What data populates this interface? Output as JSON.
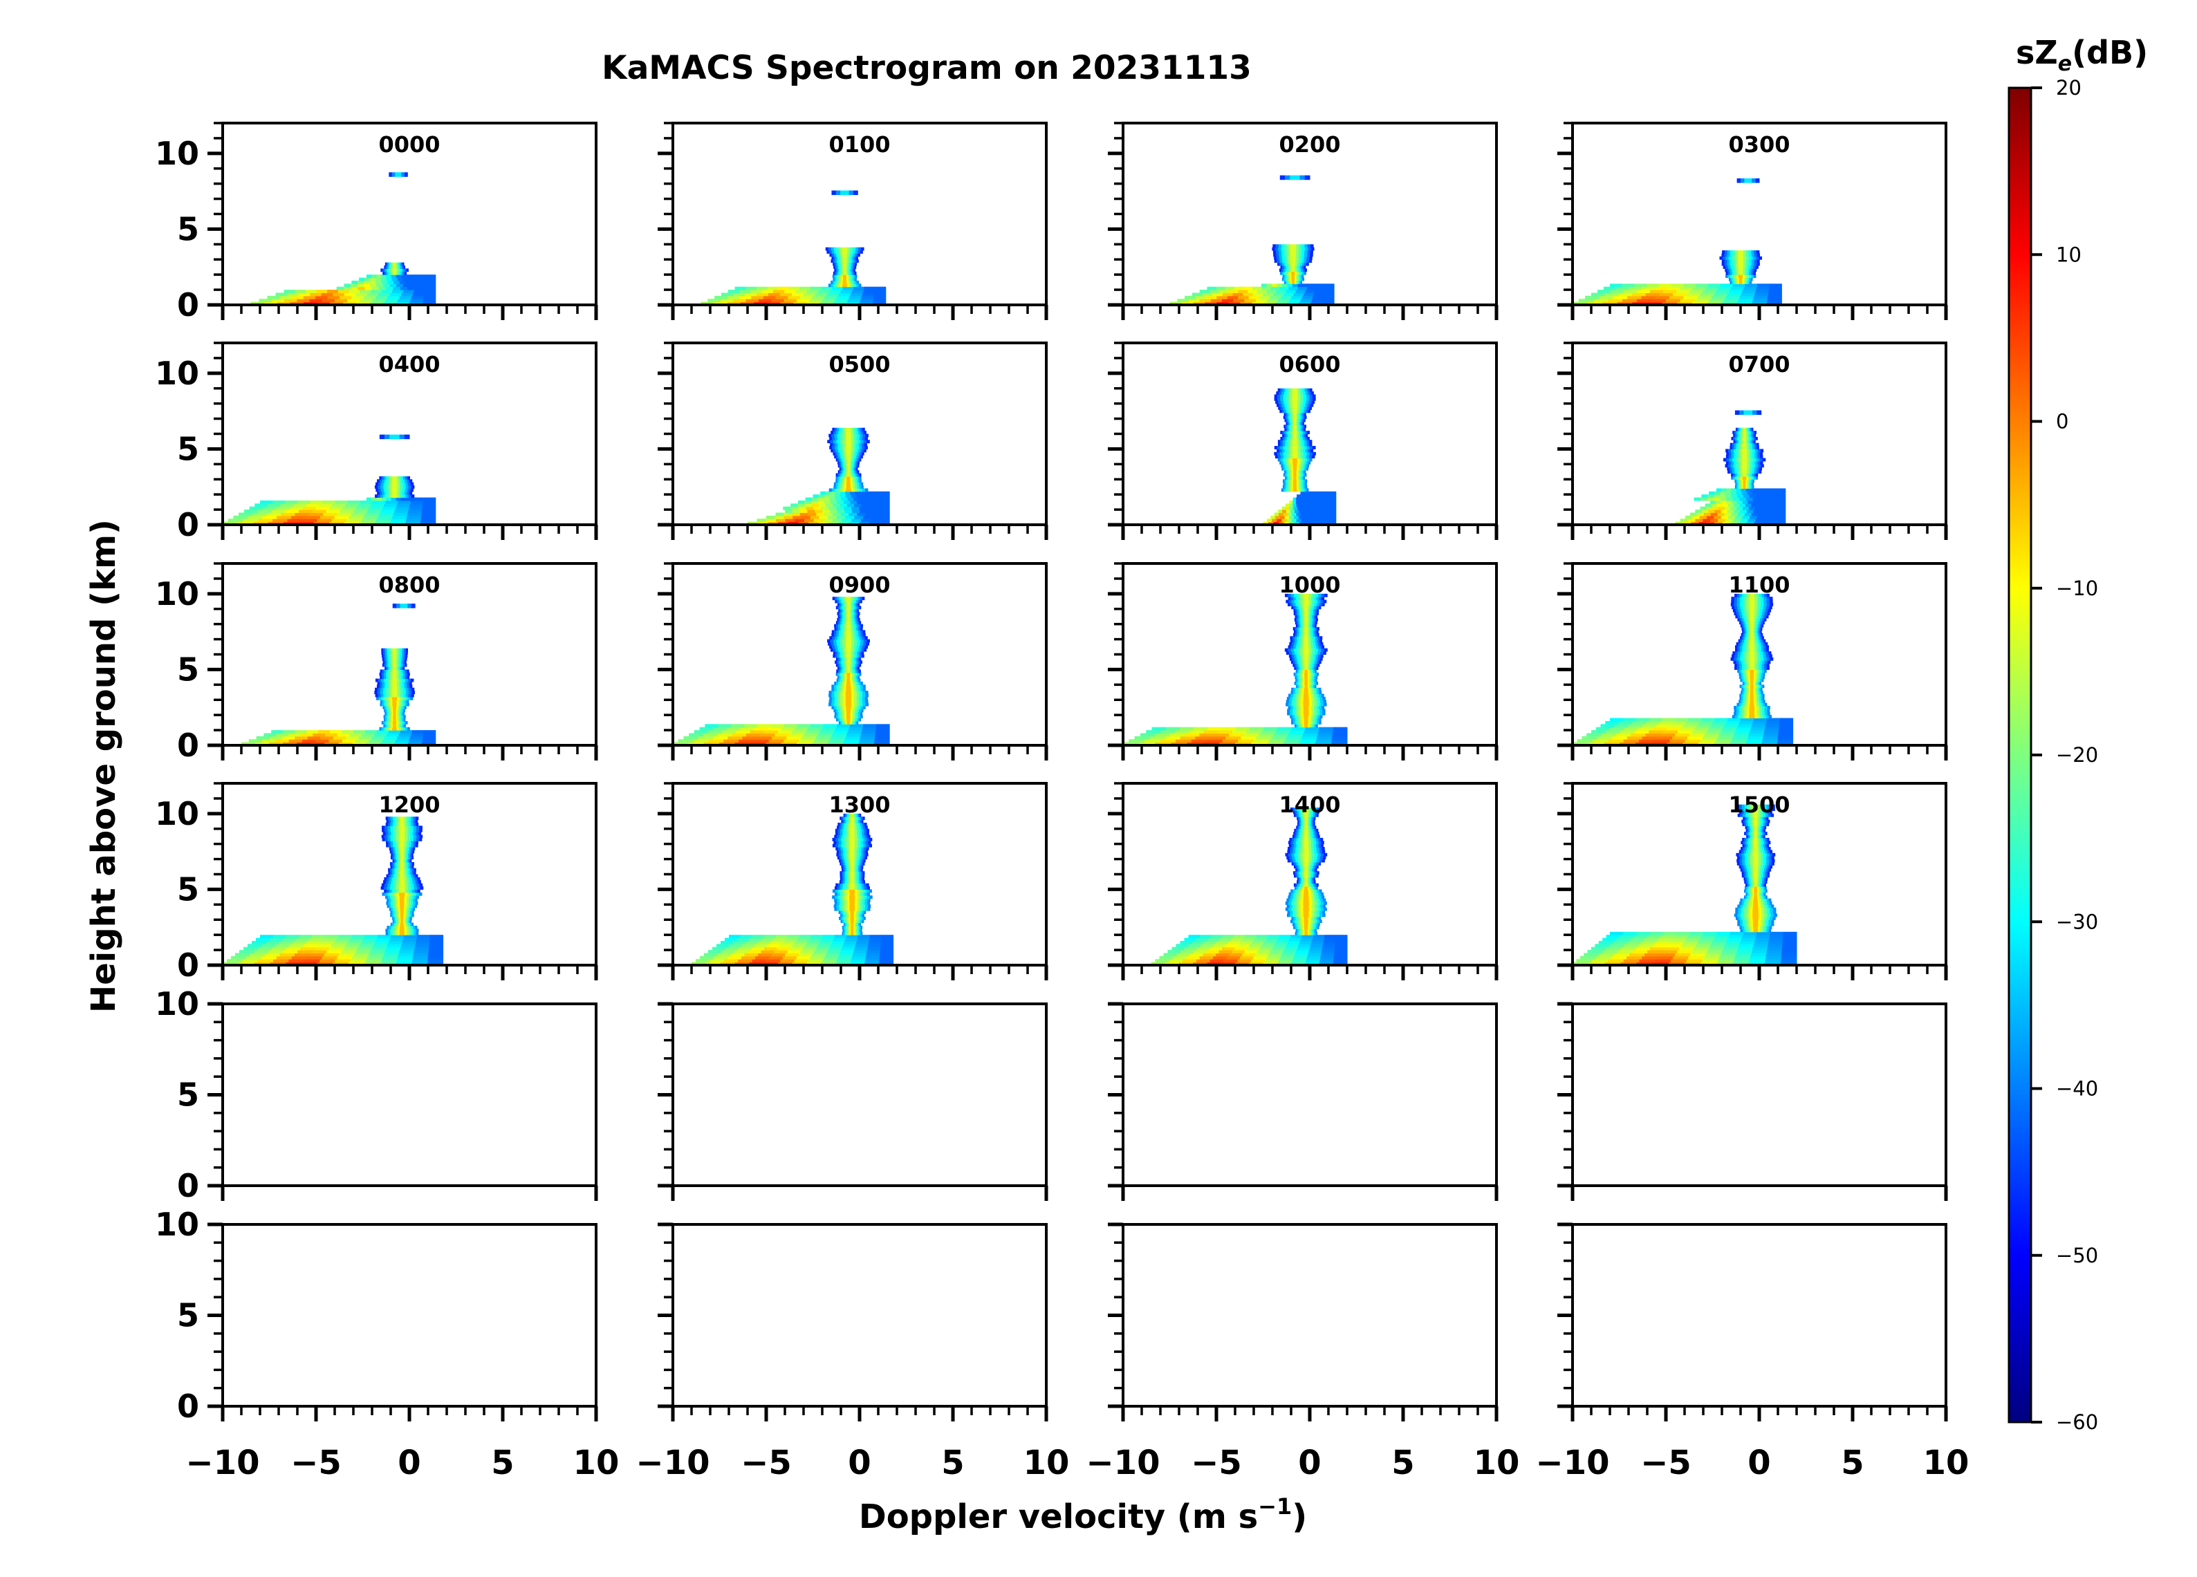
{
  "chart_data": {
    "type": "heatmap",
    "title": "KaMACS Spectrogram on 20231113",
    "xlabel": "Doppler velocity (m s⁻¹)",
    "xlabel_main": "Doppler velocity (m s",
    "xlabel_sup": "−1",
    "xlabel_tail": ")",
    "ylabel": "Height above ground (km)",
    "xlim": [
      -10,
      10
    ],
    "ylim_data_panels": [
      0,
      12
    ],
    "ylim_empty_panels": [
      0,
      10
    ],
    "x_ticks": [
      -10,
      -5,
      0,
      5,
      10
    ],
    "x_tick_labels": [
      "−10",
      "−5",
      "0",
      "5",
      "10"
    ],
    "y_ticks": [
      0,
      5,
      10
    ],
    "y_tick_labels": [
      "0",
      "5",
      "10"
    ],
    "grid": "6 rows x 4 columns",
    "panels": [
      {
        "label": "0000",
        "tops": [
          {
            "y": 8.6,
            "vel": -0.6,
            "w": 0.5
          }
        ],
        "base_top": 1.8,
        "core_top": 2.6,
        "core_vel": -0.8,
        "tail_vel": -8.5,
        "tail_top": 0.9
      },
      {
        "label": "0100",
        "tops": [
          {
            "y": 7.4,
            "vel": -0.8,
            "w": 0.7
          }
        ],
        "base_top": 1.2,
        "core_top": 3.8,
        "core_vel": -0.8,
        "tail_vel": -8.5,
        "tail_top": 1.1
      },
      {
        "label": "0200",
        "tops": [
          {
            "y": 8.4,
            "vel": -0.8,
            "w": 0.8
          }
        ],
        "base_top": 1.3,
        "core_top": 4.0,
        "core_vel": -0.9,
        "tail_vel": -7.5,
        "tail_top": 1.0
      },
      {
        "label": "0300",
        "tops": [
          {
            "y": 8.2,
            "vel": -0.6,
            "w": 0.6
          }
        ],
        "base_top": 1.4,
        "core_top": 3.6,
        "core_vel": -1.0,
        "tail_vel": -10,
        "tail_top": 1.2
      },
      {
        "label": "0400",
        "tops": [
          {
            "y": 5.8,
            "vel": -0.8,
            "w": 0.8
          }
        ],
        "base_top": 1.6,
        "core_top": 3.2,
        "core_vel": -0.8,
        "tail_vel": -10,
        "tail_top": 1.4
      },
      {
        "label": "0500",
        "tops": [],
        "base_top": 2.0,
        "core_top": 6.4,
        "core_vel": -0.6,
        "tail_vel": -6.0,
        "tail_top": 0.8
      },
      {
        "label": "0600",
        "tops": [],
        "base_top": 2.0,
        "core_top": 8.8,
        "core_vel": -0.8,
        "tail_vel": -2.5,
        "tail_top": 2.0
      },
      {
        "label": "0700",
        "tops": [
          {
            "y": 7.4,
            "vel": -0.6,
            "w": 0.7
          }
        ],
        "base_top": 2.2,
        "core_top": 6.4,
        "core_vel": -0.8,
        "tail_vel": -4.5,
        "tail_top": 1.5
      },
      {
        "label": "0800",
        "tops": [
          {
            "y": 9.2,
            "vel": -0.3,
            "w": 0.6
          }
        ],
        "base_top": 1.0,
        "core_top": 6.4,
        "core_vel": -0.8,
        "tail_vel": -9.0,
        "tail_top": 1.0
      },
      {
        "label": "0900",
        "tops": [],
        "base_top": 1.4,
        "core_top": 9.6,
        "core_vel": -0.6,
        "tail_vel": -10,
        "tail_top": 1.4
      },
      {
        "label": "1000",
        "tops": [],
        "base_top": 1.2,
        "core_top": 9.8,
        "core_vel": -0.2,
        "tail_vel": -10,
        "tail_top": 1.3
      },
      {
        "label": "1100",
        "tops": [],
        "base_top": 1.6,
        "core_top": 9.8,
        "core_vel": -0.4,
        "tail_vel": -10,
        "tail_top": 1.6
      },
      {
        "label": "1200",
        "tops": [],
        "base_top": 1.8,
        "core_top": 9.6,
        "core_vel": -0.4,
        "tail_vel": -10,
        "tail_top": 1.8
      },
      {
        "label": "1300",
        "tops": [],
        "base_top": 1.8,
        "core_top": 9.8,
        "core_vel": -0.4,
        "tail_vel": -9.0,
        "tail_top": 1.8
      },
      {
        "label": "1400",
        "tops": [],
        "base_top": 1.8,
        "core_top": 10.2,
        "core_vel": -0.2,
        "tail_vel": -8.5,
        "tail_top": 1.8
      },
      {
        "label": "1500",
        "tops": [],
        "base_top": 2.0,
        "core_top": 10.4,
        "core_vel": -0.2,
        "tail_vel": -10,
        "tail_top": 2.0
      },
      {
        "label": "",
        "empty": true
      },
      {
        "label": "",
        "empty": true
      },
      {
        "label": "",
        "empty": true
      },
      {
        "label": "",
        "empty": true
      },
      {
        "label": "",
        "empty": true
      },
      {
        "label": "",
        "empty": true
      },
      {
        "label": "",
        "empty": true
      },
      {
        "label": "",
        "empty": true
      }
    ],
    "colorbar": {
      "label": "sZ",
      "label_sub": "e",
      "label_unit": "(dB)",
      "range": [
        -60,
        20
      ],
      "ticks": [
        20,
        10,
        0,
        -10,
        -20,
        -30,
        -40,
        -50,
        -60
      ],
      "tick_labels": [
        "20",
        "10",
        "0",
        "−10",
        "−20",
        "−30",
        "−40",
        "−50",
        "−60"
      ],
      "colormap": "jet",
      "colors": [
        "#00007f",
        "#0000ff",
        "#007fff",
        "#00ffff",
        "#7fff7f",
        "#ffff00",
        "#ff7f00",
        "#ff0000",
        "#7f0000"
      ]
    }
  }
}
